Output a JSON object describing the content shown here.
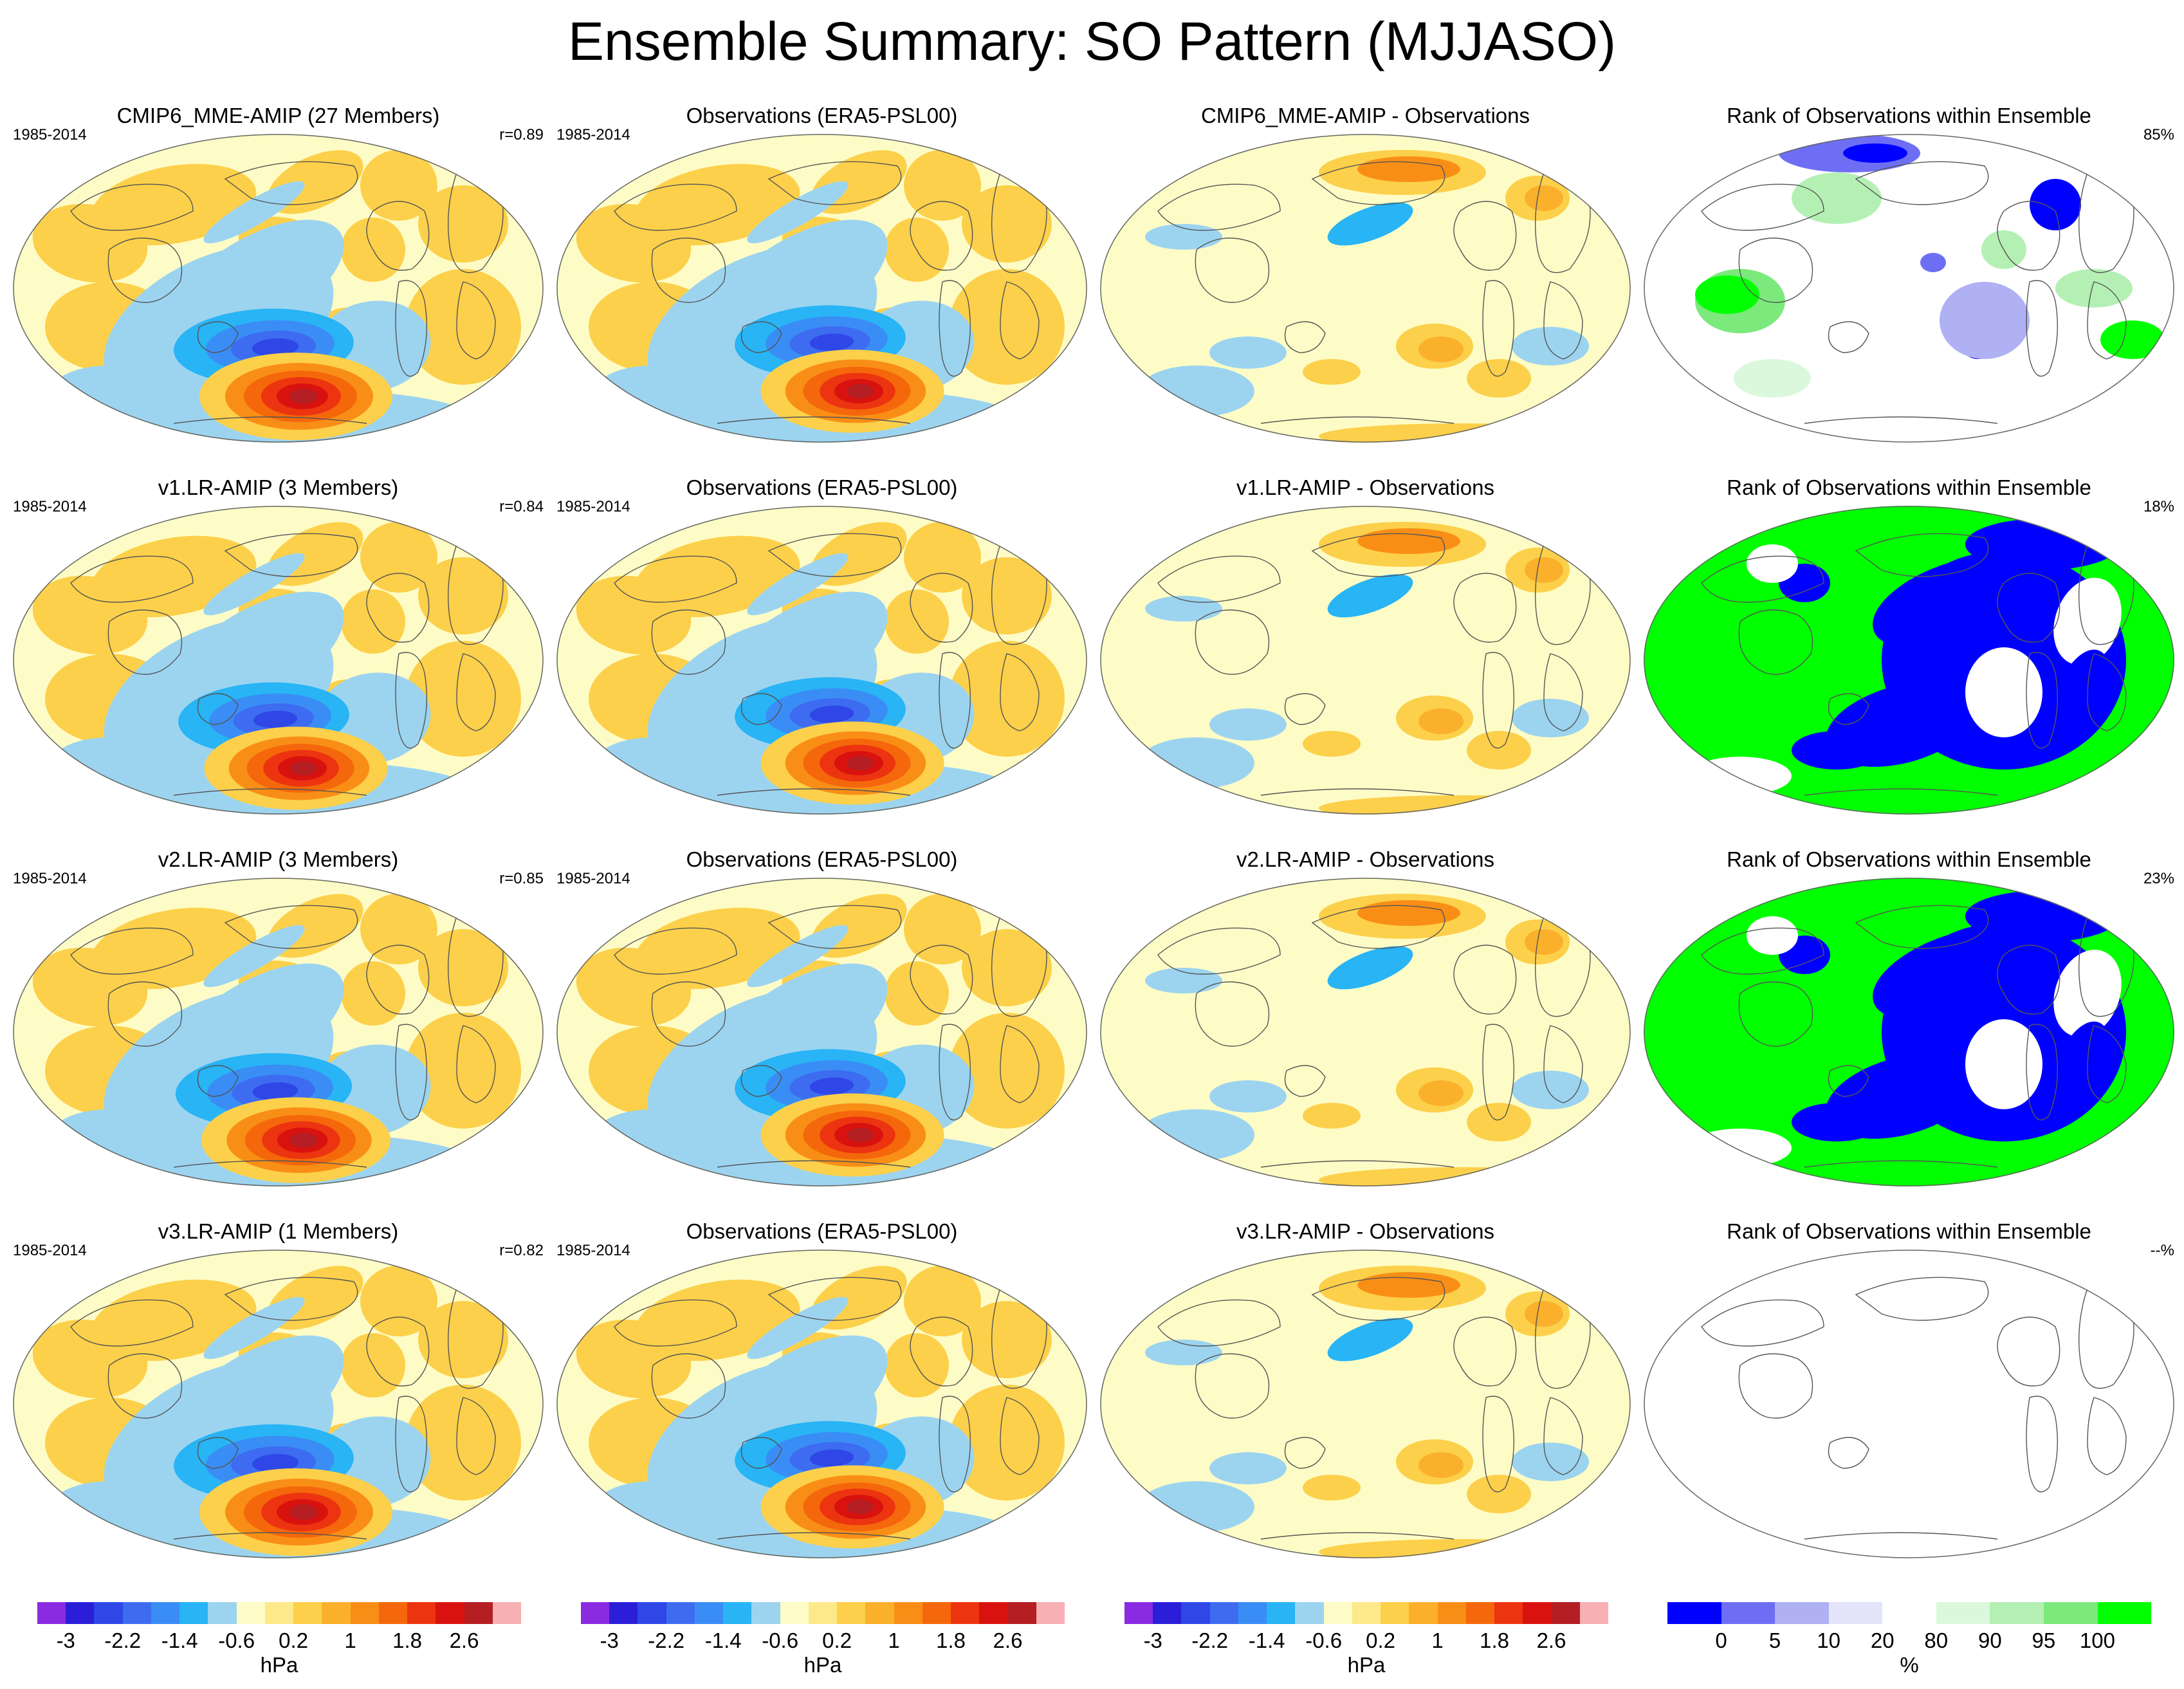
{
  "title": "Ensemble Summary: SO Pattern (MJJASO)",
  "period": "1985-2014",
  "observations_title": "Observations (ERA5-PSL00)",
  "rank_title": "Rank of Observations within Ensemble",
  "rows": [
    {
      "model_title": "CMIP6_MME-AMIP (27 Members)",
      "r": "r=0.89",
      "diff_title": "CMIP6_MME-AMIP - Observations",
      "rank_pct": "85%",
      "rank_style": "mme"
    },
    {
      "model_title": "v1.LR-AMIP (3 Members)",
      "r": "r=0.84",
      "diff_title": "v1.LR-AMIP - Observations",
      "rank_pct": "18%",
      "rank_style": "small"
    },
    {
      "model_title": "v2.LR-AMIP (3 Members)",
      "r": "r=0.85",
      "diff_title": "v2.LR-AMIP - Observations",
      "rank_pct": "23%",
      "rank_style": "small"
    },
    {
      "model_title": "v3.LR-AMIP (1 Members)",
      "r": "r=0.82",
      "diff_title": "v3.LR-AMIP - Observations",
      "rank_pct": "--%",
      "rank_style": "none"
    }
  ],
  "colorbars": {
    "pressure": {
      "unit": "hPa",
      "tick_labels": [
        "-3",
        "-2.2",
        "-1.4",
        "-0.6",
        "0.2",
        "1",
        "1.8",
        "2.6"
      ],
      "colors": [
        "#8a2be2",
        "#2b1ed8",
        "#2e47e6",
        "#3d6cf0",
        "#3a8df5",
        "#28b4f5",
        "#9cd4f0",
        "#fefcc6",
        "#fde98a",
        "#fcd04a",
        "#fbb02b",
        "#f98e16",
        "#f5670b",
        "#ec3410",
        "#d9120f",
        "#b51e22",
        "#f7b0b4"
      ]
    },
    "rank": {
      "unit": "%",
      "tick_labels": [
        "0",
        "5",
        "10",
        "20",
        "80",
        "90",
        "95",
        "100"
      ],
      "colors": [
        "#0000ff",
        "#6e6ef5",
        "#b0b0f5",
        "#e4e4fb",
        "#ffffff",
        "#dcf8dc",
        "#b4f0b4",
        "#7ce97c",
        "#00ff00"
      ]
    }
  }
}
